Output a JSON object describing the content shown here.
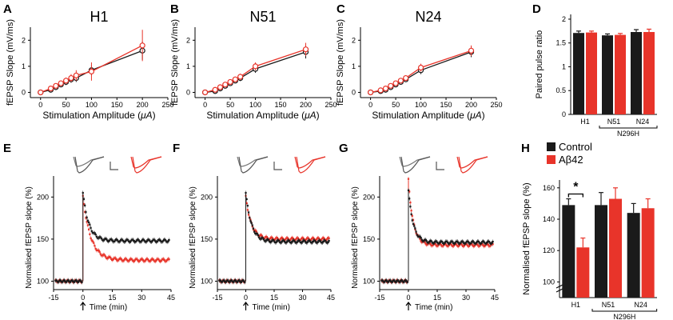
{
  "colors": {
    "control": "#1a1a1a",
    "abeta": "#e8342a",
    "grey_trace": "#777777"
  },
  "chart_data": [
    {
      "panel": "A",
      "type": "line",
      "title": "H1",
      "xlabel": "Stimulation Amplitude (",
      "xlabel_unit": "μA",
      "ylabel": "fEPSP Slope (mV/ms)",
      "xlim": [
        -20,
        250
      ],
      "ylim": [
        -0.2,
        2.5
      ],
      "xticks": [
        "0",
        "50",
        "100",
        "150",
        "200",
        "250"
      ],
      "yticks": [
        "0",
        "1",
        "2"
      ],
      "x": [
        0,
        20,
        30,
        40,
        50,
        60,
        70,
        100,
        200
      ],
      "series": [
        {
          "name": "Control",
          "values": [
            0.0,
            0.1,
            0.2,
            0.3,
            0.4,
            0.5,
            0.55,
            0.85,
            1.6
          ],
          "err": [
            0.03,
            0.05,
            0.08,
            0.1,
            0.12,
            0.13,
            0.15,
            0.2,
            0.35
          ]
        },
        {
          "name": "Aβ42",
          "values": [
            0.0,
            0.15,
            0.25,
            0.35,
            0.45,
            0.55,
            0.65,
            0.8,
            1.8
          ],
          "err": [
            0.03,
            0.05,
            0.08,
            0.1,
            0.12,
            0.15,
            0.2,
            0.35,
            0.6
          ]
        }
      ]
    },
    {
      "panel": "B",
      "type": "line",
      "title": "N51",
      "xlabel": "Stimulation Amplitude (",
      "xlabel_unit": "μA",
      "ylabel": "fEPSP Slope (mV/ms)",
      "xlim": [
        -20,
        250
      ],
      "ylim": [
        -0.2,
        2.5
      ],
      "xticks": [
        "0",
        "50",
        "100",
        "150",
        "200",
        "250"
      ],
      "yticks": [
        "0",
        "1",
        "2"
      ],
      "x": [
        0,
        20,
        30,
        40,
        50,
        60,
        70,
        100,
        200
      ],
      "series": [
        {
          "name": "Control",
          "values": [
            0.0,
            0.05,
            0.15,
            0.25,
            0.35,
            0.45,
            0.55,
            0.9,
            1.55
          ],
          "err": [
            0.03,
            0.05,
            0.06,
            0.08,
            0.1,
            0.1,
            0.12,
            0.15,
            0.25
          ]
        },
        {
          "name": "Aβ42",
          "values": [
            0.0,
            0.1,
            0.2,
            0.3,
            0.4,
            0.5,
            0.6,
            1.0,
            1.65
          ],
          "err": [
            0.03,
            0.05,
            0.06,
            0.08,
            0.1,
            0.1,
            0.12,
            0.15,
            0.25
          ]
        }
      ]
    },
    {
      "panel": "C",
      "type": "line",
      "title": "N24",
      "xlabel": "Stimulation Amplitude (",
      "xlabel_unit": "μA",
      "ylabel": "fEPSP Slope (mV/ms)",
      "xlim": [
        -20,
        250
      ],
      "ylim": [
        -0.2,
        2.5
      ],
      "xticks": [
        "0",
        "50",
        "100",
        "150",
        "200",
        "250"
      ],
      "yticks": [
        "0",
        "1",
        "2"
      ],
      "x": [
        0,
        20,
        30,
        40,
        50,
        60,
        70,
        100,
        200
      ],
      "series": [
        {
          "name": "Control",
          "values": [
            0.0,
            0.05,
            0.1,
            0.2,
            0.3,
            0.4,
            0.5,
            0.85,
            1.55
          ],
          "err": [
            0.03,
            0.04,
            0.05,
            0.06,
            0.08,
            0.1,
            0.1,
            0.15,
            0.2
          ]
        },
        {
          "name": "Aβ42",
          "values": [
            0.0,
            0.08,
            0.15,
            0.25,
            0.35,
            0.45,
            0.55,
            0.95,
            1.6
          ],
          "err": [
            0.03,
            0.04,
            0.05,
            0.06,
            0.08,
            0.1,
            0.1,
            0.15,
            0.2
          ]
        }
      ]
    },
    {
      "panel": "D",
      "type": "bar",
      "title": "",
      "ylabel": "Paired pulse ratio",
      "ylim": [
        0,
        2.1
      ],
      "yticks": [
        "0",
        "0.5",
        "1",
        "1.5",
        "2"
      ],
      "categories": [
        "H1",
        "N51",
        "N24"
      ],
      "group_label": "N296H",
      "series": [
        {
          "name": "Control",
          "values": [
            1.71,
            1.66,
            1.73
          ],
          "err": [
            0.04,
            0.03,
            0.05
          ]
        },
        {
          "name": "Aβ42",
          "values": [
            1.72,
            1.67,
            1.73
          ],
          "err": [
            0.03,
            0.03,
            0.06
          ]
        }
      ]
    },
    {
      "panel": "E",
      "type": "scatter",
      "ylabel": "Normalised fEPSP slope (%)",
      "xlabel": "Time (min)",
      "xlim": [
        -15,
        45
      ],
      "ylim": [
        90,
        225
      ],
      "xticks": [
        "-15",
        "0",
        "15",
        "30",
        "45"
      ],
      "yticks": [
        "100",
        "150",
        "200"
      ],
      "series": [
        {
          "name": "Control",
          "baseline": 100,
          "peak": 205,
          "plateau": 148,
          "tau": 3
        },
        {
          "name": "Aβ42",
          "baseline": 100,
          "peak": 200,
          "plateau": 125,
          "tau": 4
        }
      ]
    },
    {
      "panel": "F",
      "type": "scatter",
      "ylabel": "Normalised fEPSP slope (%)",
      "xlabel": "Time (min)",
      "xlim": [
        -15,
        45
      ],
      "ylim": [
        90,
        225
      ],
      "xticks": [
        "-15",
        "0",
        "15",
        "30",
        "45"
      ],
      "yticks": [
        "100",
        "150",
        "200"
      ],
      "series": [
        {
          "name": "Control",
          "baseline": 100,
          "peak": 205,
          "plateau": 147,
          "tau": 3
        },
        {
          "name": "Aβ42",
          "baseline": 100,
          "peak": 200,
          "plateau": 150,
          "tau": 3
        }
      ]
    },
    {
      "panel": "G",
      "type": "scatter",
      "ylabel": "Normalised fEPSP slope (%)",
      "xlabel": "Time (min)",
      "xlim": [
        -15,
        45
      ],
      "ylim": [
        90,
        225
      ],
      "xticks": [
        "-15",
        "0",
        "15",
        "30",
        "45"
      ],
      "yticks": [
        "100",
        "150",
        "200"
      ],
      "series": [
        {
          "name": "Control",
          "baseline": 100,
          "peak": 208,
          "plateau": 146,
          "tau": 2.5
        },
        {
          "name": "Aβ42",
          "baseline": 100,
          "peak": 220,
          "plateau": 143,
          "tau": 2.5
        }
      ]
    },
    {
      "panel": "H",
      "type": "bar",
      "ylabel": "Normalised fEPSP slope (%)",
      "ylim": [
        90,
        165
      ],
      "yticks": [
        "100",
        "120",
        "140",
        "160"
      ],
      "categories": [
        "H1",
        "N51",
        "N24"
      ],
      "group_label": "N296H",
      "legend": [
        "Control",
        "Aβ42"
      ],
      "annotation": "*",
      "series": [
        {
          "name": "Control",
          "values": [
            149,
            149,
            144
          ],
          "err": [
            4,
            8,
            6
          ]
        },
        {
          "name": "Aβ42",
          "values": [
            122,
            153,
            147
          ],
          "err": [
            6,
            7,
            6
          ]
        }
      ]
    }
  ]
}
